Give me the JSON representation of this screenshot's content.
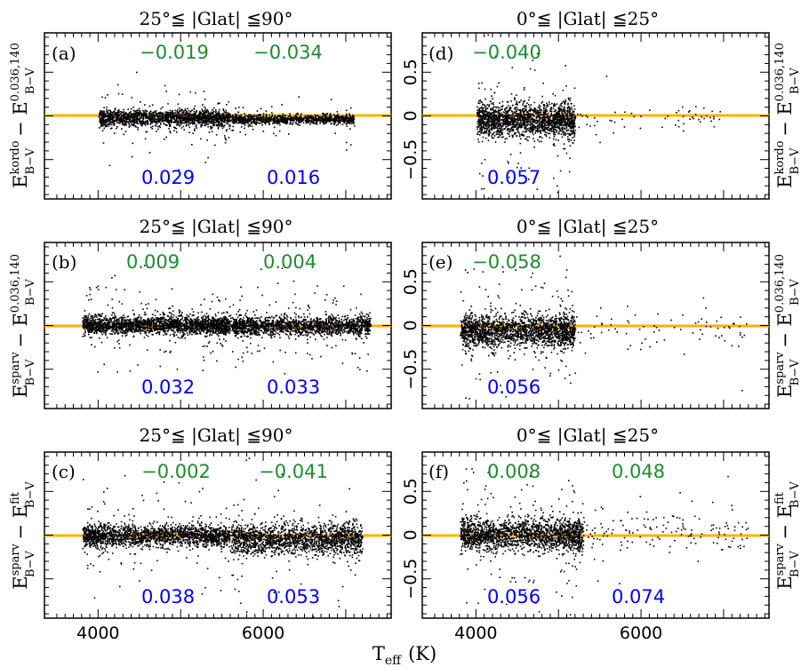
{
  "x_axis": {
    "label_main": "T",
    "label_sub": "eff",
    "label_unit": "(K)",
    "ticks": [
      "4000",
      "6000"
    ],
    "range": [
      3350,
      7550
    ]
  },
  "y_axis": {
    "ticks": [
      "0.5",
      "0",
      "−0.5"
    ],
    "range": [
      -0.95,
      0.95
    ]
  },
  "colors": {
    "zero_line": "#ffb000",
    "mean": "#1e8b2e",
    "sigma": "#0000ff",
    "points": "#000000"
  },
  "ylabels": {
    "row_a": {
      "minuend": "kordo",
      "subtrahend": "0.036,140",
      "base": "E",
      "sub": "B−V"
    },
    "row_b": {
      "minuend": "sparv",
      "subtrahend": "0.036,140",
      "base": "E",
      "sub": "B−V"
    },
    "row_c": {
      "minuend": "sparv",
      "subtrahend": "fit",
      "base": "E",
      "sub": "B−V"
    }
  },
  "panels": [
    {
      "id": "a",
      "tag": "(a)",
      "title": "25°≦ |Glat| ≦90°",
      "means": [
        "−0.019",
        "−0.034"
      ],
      "sigmas": [
        "0.029",
        "0.016"
      ]
    },
    {
      "id": "d",
      "tag": "(d)",
      "title": "0°≦ |Glat| ≦25°",
      "means": [
        "−0.040"
      ],
      "sigmas": [
        "0.057"
      ]
    },
    {
      "id": "b",
      "tag": "(b)",
      "title": "25°≦ |Glat| ≦90°",
      "means": [
        "0.009",
        "0.004"
      ],
      "sigmas": [
        "0.032",
        "0.033"
      ]
    },
    {
      "id": "e",
      "tag": "(e)",
      "title": "0°≦ |Glat| ≦25°",
      "means": [
        "−0.058"
      ],
      "sigmas": [
        "0.056"
      ]
    },
    {
      "id": "c",
      "tag": "(c)",
      "title": "25°≦ |Glat| ≦90°",
      "means": [
        "−0.002",
        "−0.041"
      ],
      "sigmas": [
        "0.038",
        "0.053"
      ]
    },
    {
      "id": "f",
      "tag": "(f)",
      "title": "0°≦ |Glat| ≦25°",
      "means": [
        "0.008",
        "0.048"
      ],
      "sigmas": [
        "0.056",
        "0.074"
      ]
    }
  ],
  "chart_data": [
    {
      "type": "scatter",
      "panel": "a",
      "title": "25°≦ |Glat| ≦90°",
      "xlabel": "Teff (K)",
      "ylabel": "E(B−V)kordo − E(B−V)0.036,140",
      "xlim": [
        3350,
        7550
      ],
      "ylim": [
        -0.95,
        0.95
      ],
      "reference_line_y": 0,
      "populations": [
        {
          "x_range": [
            4000,
            5600
          ],
          "y_mean": -0.019,
          "y_sigma": 0.029,
          "n": 1700
        },
        {
          "x_range": [
            5600,
            7100
          ],
          "y_mean": -0.034,
          "y_sigma": 0.016,
          "n": 1100
        }
      ]
    },
    {
      "type": "scatter",
      "panel": "d",
      "title": "0°≦ |Glat| ≦25°",
      "xlabel": "Teff (K)",
      "ylabel": "E(B−V)kordo − E(B−V)0.036,140",
      "xlim": [
        3350,
        7550
      ],
      "ylim": [
        -0.95,
        0.95
      ],
      "reference_line_y": 0,
      "populations": [
        {
          "x_range": [
            4000,
            5200
          ],
          "y_mean": -0.04,
          "y_sigma": 0.057,
          "n": 1900
        },
        {
          "x_range": [
            5200,
            7000
          ],
          "y_mean": -0.04,
          "y_sigma": 0.05,
          "n": 60
        }
      ]
    },
    {
      "type": "scatter",
      "panel": "b",
      "title": "25°≦ |Glat| ≦90°",
      "xlabel": "Teff (K)",
      "ylabel": "E(B−V)sparv − E(B−V)0.036,140",
      "xlim": [
        3350,
        7550
      ],
      "ylim": [
        -0.95,
        0.95
      ],
      "reference_line_y": 0,
      "populations": [
        {
          "x_range": [
            3800,
            5600
          ],
          "y_mean": 0.009,
          "y_sigma": 0.032,
          "n": 2200
        },
        {
          "x_range": [
            5600,
            7300
          ],
          "y_mean": 0.004,
          "y_sigma": 0.033,
          "n": 1800
        }
      ]
    },
    {
      "type": "scatter",
      "panel": "e",
      "title": "0°≦ |Glat| ≦25°",
      "xlabel": "Teff (K)",
      "ylabel": "E(B−V)sparv − E(B−V)0.036,140",
      "xlim": [
        3350,
        7550
      ],
      "ylim": [
        -0.95,
        0.95
      ],
      "reference_line_y": 0,
      "populations": [
        {
          "x_range": [
            3800,
            5200
          ],
          "y_mean": -0.058,
          "y_sigma": 0.056,
          "n": 2000
        },
        {
          "x_range": [
            5200,
            7300
          ],
          "y_mean": -0.04,
          "y_sigma": 0.06,
          "n": 80
        }
      ]
    },
    {
      "type": "scatter",
      "panel": "c",
      "title": "25°≦ |Glat| ≦90°",
      "xlabel": "Teff (K)",
      "ylabel": "E(B−V)sparv − E(B−V)fit",
      "xlim": [
        3350,
        7550
      ],
      "ylim": [
        -0.95,
        0.95
      ],
      "reference_line_y": 0,
      "populations": [
        {
          "x_range": [
            3800,
            5600
          ],
          "y_mean": -0.002,
          "y_sigma": 0.038,
          "n": 2000
        },
        {
          "x_range": [
            5600,
            7200
          ],
          "y_mean": -0.041,
          "y_sigma": 0.053,
          "n": 1800
        }
      ]
    },
    {
      "type": "scatter",
      "panel": "f",
      "title": "0°≦ |Glat| ≦25°",
      "xlabel": "Teff (K)",
      "ylabel": "E(B−V)sparv − E(B−V)fit",
      "xlim": [
        3350,
        7550
      ],
      "ylim": [
        -0.95,
        0.95
      ],
      "reference_line_y": 0,
      "populations": [
        {
          "x_range": [
            3800,
            5300
          ],
          "y_mean": 0.008,
          "y_sigma": 0.056,
          "n": 2000
        },
        {
          "x_range": [
            5300,
            7300
          ],
          "y_mean": 0.048,
          "y_sigma": 0.074,
          "n": 150
        }
      ]
    }
  ]
}
